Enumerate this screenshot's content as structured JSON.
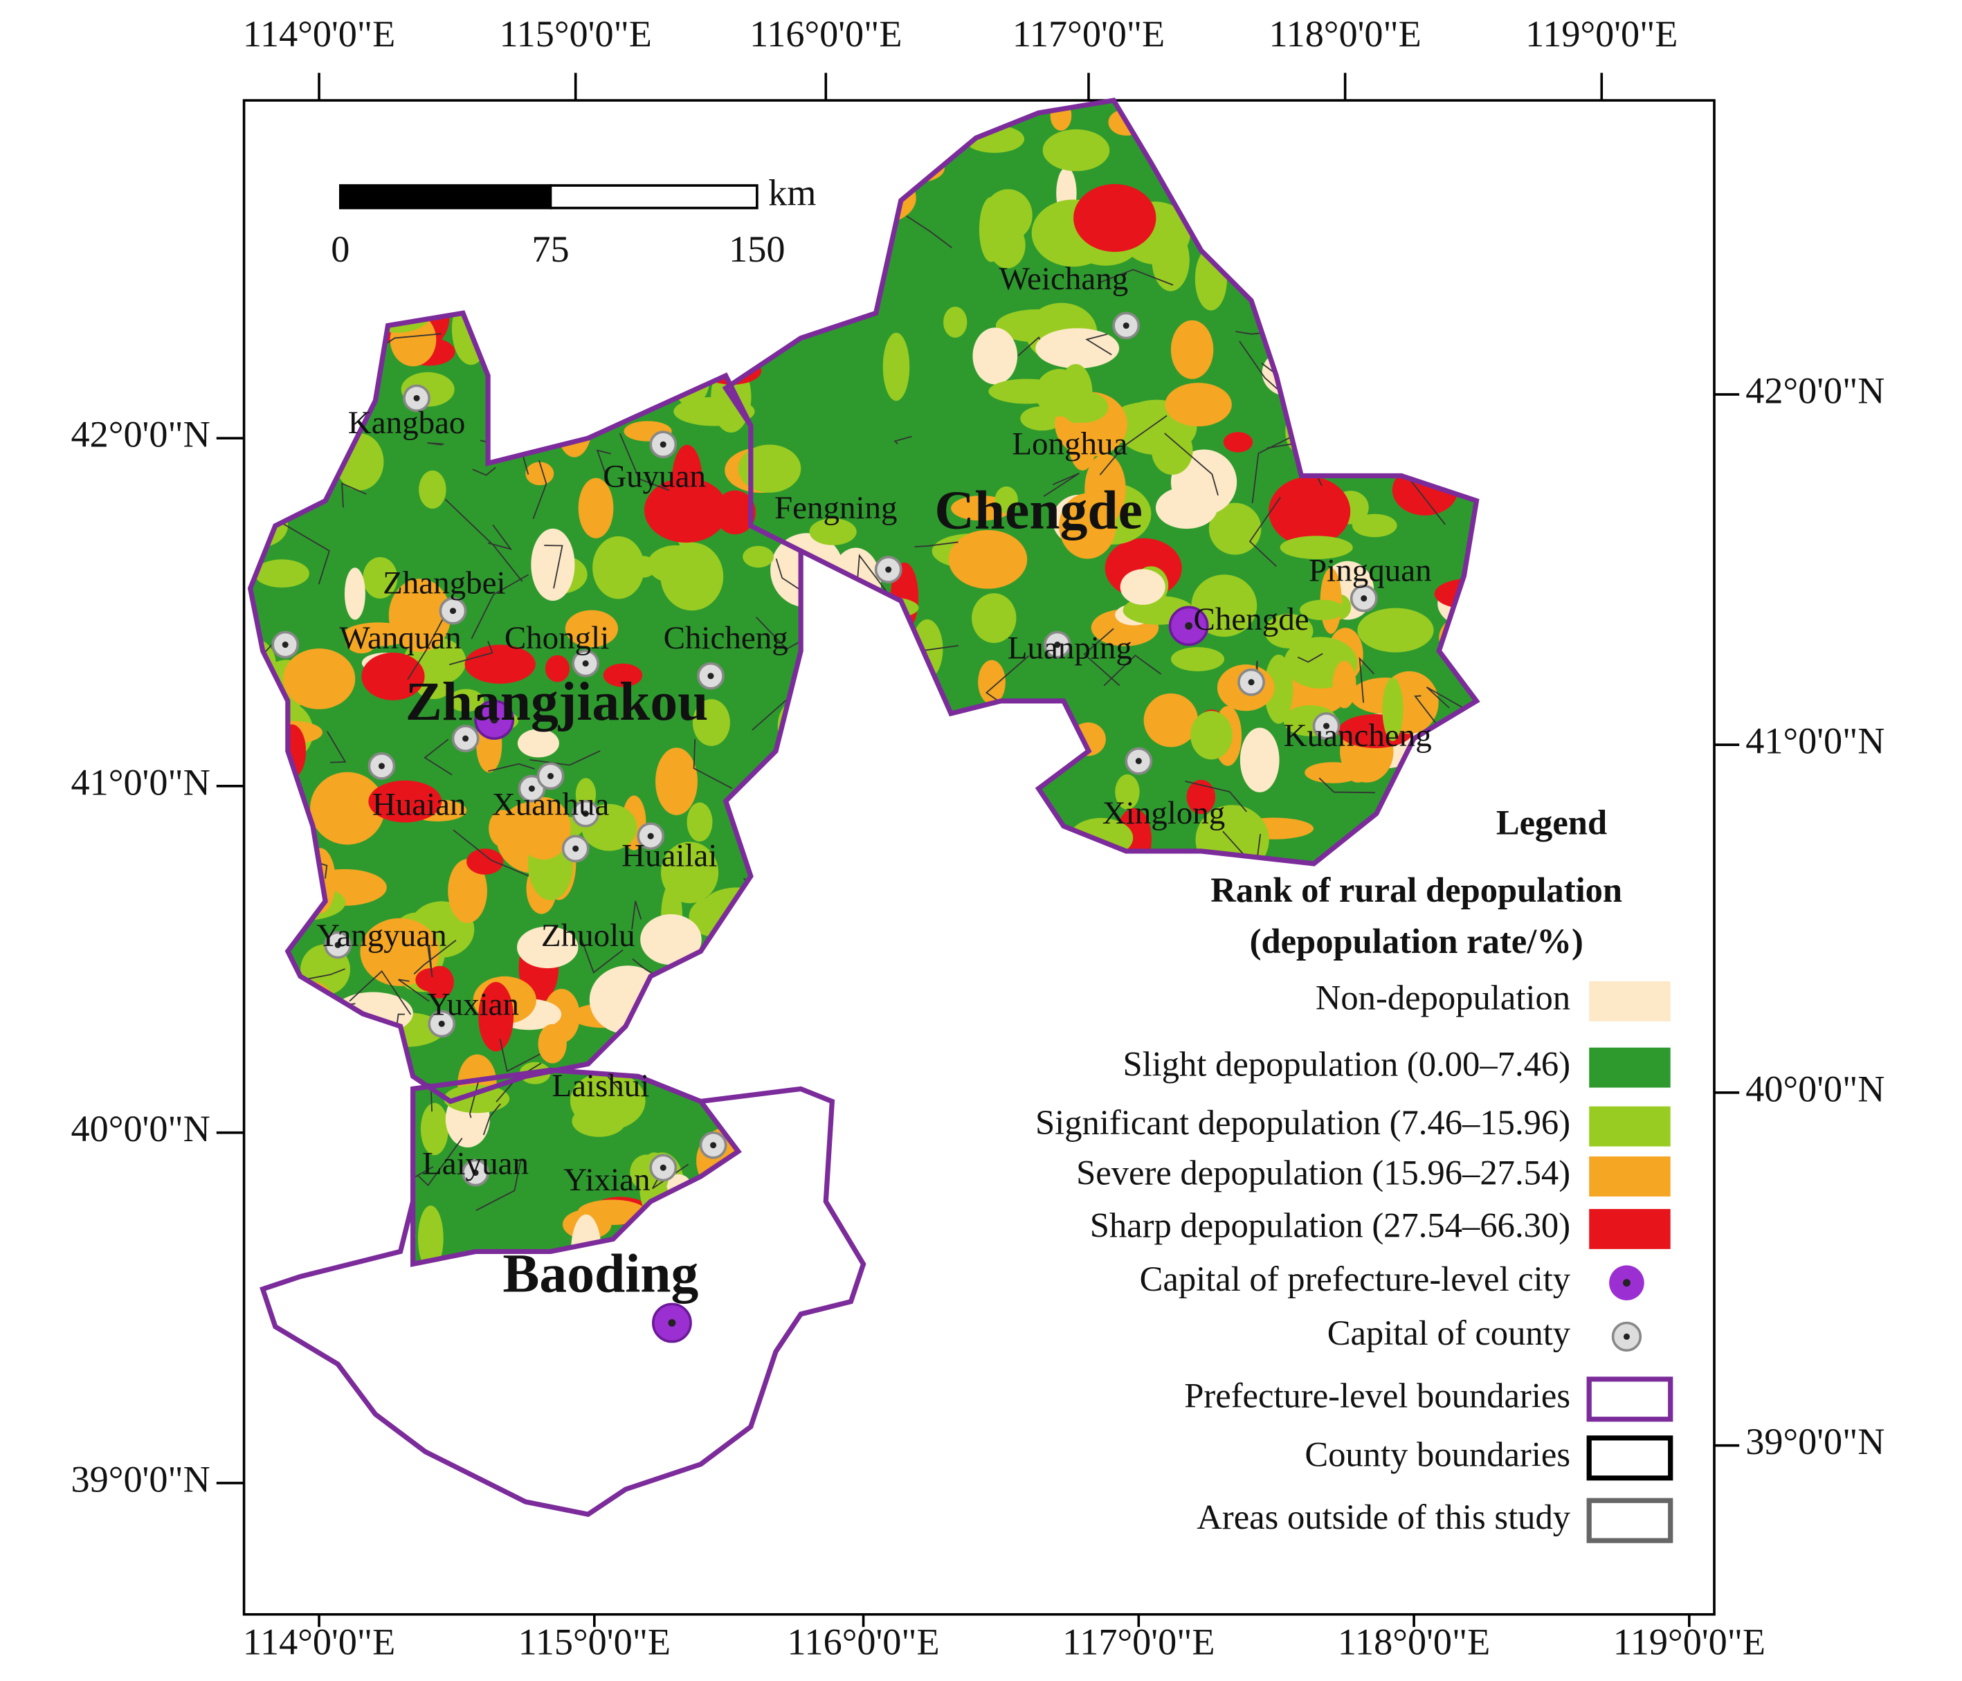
{
  "axes": {
    "top": [
      "114°0'0\"E",
      "115°0'0\"E",
      "116°0'0\"E",
      "117°0'0\"E",
      "118°0'0\"E",
      "119°0'0\"E"
    ],
    "bottom": [
      "114°0'0\"E",
      "115°0'0\"E",
      "116°0'0\"E",
      "117°0'0\"E",
      "118°0'0\"E",
      "119°0'0\"E"
    ],
    "left": [
      "42°0'0\"N",
      "41°0'0\"N",
      "40°0'0\"N",
      "39°0'0\"N"
    ],
    "right": [
      "42°0'0\"N",
      "41°0'0\"N",
      "40°0'0\"N",
      "39°0'0\"N"
    ]
  },
  "scale_bar": {
    "labels": [
      "0",
      "75",
      "150"
    ],
    "unit": "km"
  },
  "places": {
    "prefecture": [
      "Zhangjiakou",
      "Chengde",
      "Baoding"
    ],
    "county": [
      "Weichang",
      "Kangbao",
      "Longhua",
      "Guyuan",
      "Fengning",
      "Pingquan",
      "Zhangbei",
      "Wanquan",
      "Chongli",
      "Chicheng",
      "Chengde",
      "Luanping",
      "Kuancheng",
      "Huaian",
      "Xuanhua",
      "Xinglong",
      "Huailai",
      "Yangyuan",
      "Zhuolu",
      "Yuxian",
      "Laishui",
      "Laiyuan",
      "Yixian"
    ]
  },
  "legend": {
    "title": "Legend",
    "heading": "Rank of rural depopulation",
    "subheading": "(depopulation rate/%)",
    "items": [
      "Non-depopulation",
      "Slight depopulation  (0.00–7.46)",
      "Significant depopulation (7.46–15.96)",
      "Severe depopulation (15.96–27.54)",
      "Sharp depopulation (27.54–66.30)",
      "Capital of prefecture-level city",
      "Capital of county",
      "Prefecture-level boundaries",
      "County boundaries",
      "Areas outside of this study"
    ]
  }
}
